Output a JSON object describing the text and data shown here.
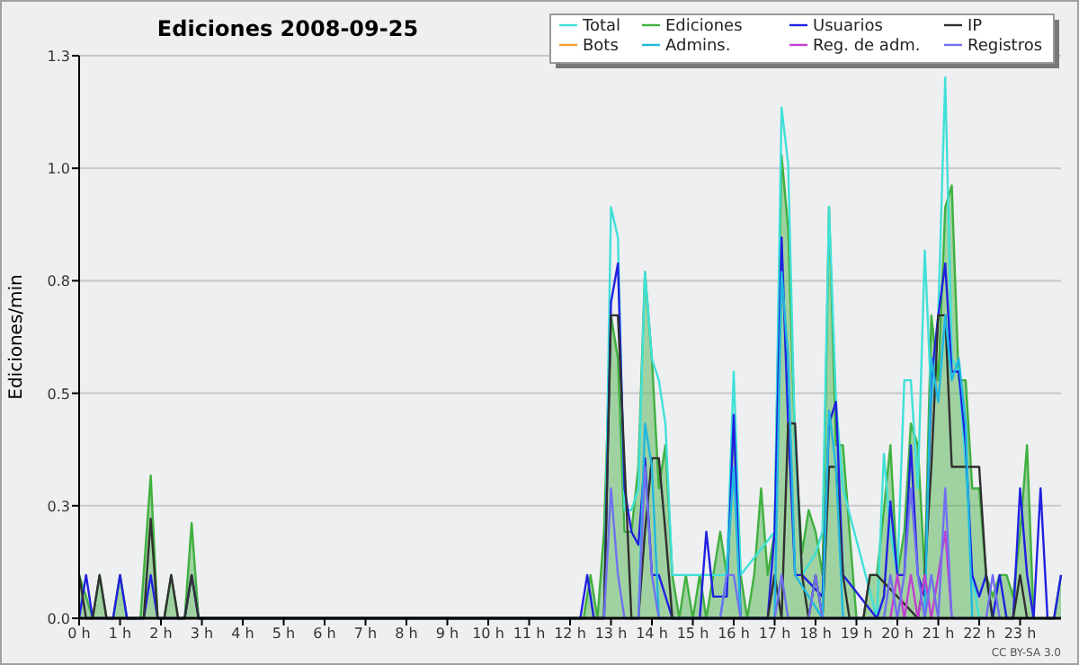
{
  "chart_data": {
    "type": "line",
    "title": "Ediciones  2008-09-25",
    "ylabel": "Ediciones/min",
    "annotations": [
      "CC BY-SA 3.0"
    ],
    "xlim": [
      0,
      24
    ],
    "xticks": [
      {
        "value": 0,
        "label": "0 h"
      },
      {
        "value": 1,
        "label": "1 h"
      },
      {
        "value": 2,
        "label": "2 h"
      },
      {
        "value": 3,
        "label": "3 h"
      },
      {
        "value": 4,
        "label": "4 h"
      },
      {
        "value": 5,
        "label": "5 h"
      },
      {
        "value": 6,
        "label": "6 h"
      },
      {
        "value": 7,
        "label": "7 h"
      },
      {
        "value": 8,
        "label": "8 h"
      },
      {
        "value": 9,
        "label": "9 h"
      },
      {
        "value": 10,
        "label": "10 h"
      },
      {
        "value": 11,
        "label": "11 h"
      },
      {
        "value": 12,
        "label": "12 h"
      },
      {
        "value": 13,
        "label": "13 h"
      },
      {
        "value": 14,
        "label": "14 h"
      },
      {
        "value": 15,
        "label": "15 h"
      },
      {
        "value": 16,
        "label": "16 h"
      },
      {
        "value": 17,
        "label": "17 h"
      },
      {
        "value": 18,
        "label": "18 h"
      },
      {
        "value": 19,
        "label": "19 h"
      },
      {
        "value": 20,
        "label": "20 h"
      },
      {
        "value": 21,
        "label": "21 h"
      },
      {
        "value": 22,
        "label": "22 h"
      },
      {
        "value": 23,
        "label": "23 h"
      }
    ],
    "ylim": [
      0,
      1.3
    ],
    "yticks": [
      {
        "value": 0,
        "label": "0.0"
      },
      {
        "value": 0.26,
        "label": "0.3"
      },
      {
        "value": 0.52,
        "label": "0.5"
      },
      {
        "value": 0.78,
        "label": "0.8"
      },
      {
        "value": 1.04,
        "label": "1.0"
      },
      {
        "value": 1.3,
        "label": "1.3"
      }
    ],
    "grid": "y",
    "legend": "top right",
    "marker": "none",
    "line_style": "solid",
    "series": [
      {
        "name": "Total",
        "color": "#40e0d8",
        "x": [
          12.83,
          13.0,
          13.17,
          13.33,
          13.5,
          13.67,
          13.83,
          14.0,
          14.17,
          14.33,
          14.5,
          15.83,
          16.0,
          16.17,
          17.0,
          17.17,
          17.33,
          17.5,
          17.67,
          18.0,
          18.17,
          18.33,
          18.5,
          18.67,
          19.5,
          19.67,
          19.83,
          20.0,
          20.17,
          20.33,
          20.5,
          20.67,
          20.83,
          21.0,
          21.17,
          21.33,
          21.5,
          21.67,
          21.83,
          22.0
        ],
        "values": [
          0,
          0.95,
          0.88,
          0.25,
          0.25,
          0.3,
          0.8,
          0.6,
          0.55,
          0.45,
          0.1,
          0.1,
          0.57,
          0.1,
          0.2,
          1.18,
          1.05,
          0.4,
          0.1,
          0.15,
          0.2,
          0.95,
          0.5,
          0.3,
          0,
          0.38,
          0.2,
          0.1,
          0.55,
          0.55,
          0.3,
          0.85,
          0.5,
          0.7,
          1.25,
          0.6,
          0.57,
          0.35,
          0.1,
          0
        ]
      },
      {
        "name": "Ediciones",
        "type": "area",
        "color": "#40b040",
        "x": [
          0,
          0.17,
          0.33,
          0.5,
          0.67,
          0.83,
          1.0,
          1.17,
          1.5,
          1.75,
          1.92,
          2.08,
          2.25,
          2.42,
          2.58,
          2.75,
          2.92,
          12.33,
          12.5,
          12.67,
          12.83,
          13.0,
          13.17,
          13.33,
          13.5,
          13.67,
          13.83,
          14.0,
          14.17,
          14.33,
          14.5,
          14.67,
          14.83,
          15.0,
          15.17,
          15.33,
          15.5,
          15.67,
          15.83,
          16.0,
          16.17,
          16.33,
          16.5,
          16.67,
          16.83,
          17.0,
          17.17,
          17.33,
          17.5,
          17.67,
          17.83,
          18.0,
          18.17,
          18.33,
          18.5,
          18.67,
          18.83,
          19.0,
          19.17,
          19.33,
          19.5,
          19.67,
          19.83,
          20.0,
          20.17,
          20.33,
          20.5,
          20.67,
          20.83,
          21.0,
          21.17,
          21.33,
          21.5,
          21.67,
          21.83,
          22.0,
          22.17,
          22.33,
          22.5,
          22.67,
          22.83,
          23.0,
          23.17,
          23.33,
          23.5,
          23.67,
          23.83,
          24.0
        ],
        "values": [
          0.1,
          0.05,
          0,
          0.1,
          0,
          0,
          0.1,
          0,
          0,
          0.33,
          0,
          0,
          0.1,
          0,
          0,
          0.22,
          0,
          0,
          0.1,
          0,
          0.2,
          0.7,
          0.6,
          0.2,
          0.2,
          0.35,
          0.8,
          0.6,
          0.3,
          0.4,
          0.1,
          0,
          0.1,
          0,
          0.1,
          0,
          0.1,
          0.2,
          0.1,
          0.47,
          0.1,
          0,
          0.1,
          0.3,
          0.1,
          0.2,
          1.07,
          0.9,
          0.4,
          0.15,
          0.25,
          0.2,
          0.1,
          0.95,
          0.4,
          0.4,
          0.2,
          0,
          0,
          0.1,
          0.1,
          0.25,
          0.4,
          0.1,
          0.2,
          0.45,
          0.4,
          0.1,
          0.7,
          0.55,
          0.95,
          1.0,
          0.55,
          0.55,
          0.3,
          0.3,
          0.1,
          0.05,
          0.1,
          0.1,
          0.05,
          0.2,
          0.4,
          0,
          0,
          0,
          0,
          0.1
        ]
      },
      {
        "name": "Usuarios",
        "color": "#2020e0",
        "x": [
          0,
          0.17,
          0.33,
          0.83,
          1.0,
          1.17,
          1.58,
          1.75,
          1.92,
          2.58,
          2.75,
          2.92,
          12.25,
          12.42,
          12.58,
          12.83,
          13.0,
          13.17,
          13.33,
          13.5,
          13.67,
          13.83,
          14.0,
          14.17,
          14.5,
          15.17,
          15.33,
          15.5,
          15.83,
          16.0,
          16.17,
          16.83,
          17.0,
          17.17,
          17.33,
          17.5,
          17.67,
          18.17,
          18.33,
          18.5,
          18.67,
          19.5,
          19.67,
          19.83,
          20.0,
          20.17,
          20.33,
          20.5,
          20.67,
          20.83,
          21.0,
          21.17,
          21.33,
          21.5,
          21.67,
          21.83,
          22.0,
          22.17,
          22.33,
          22.5,
          22.67,
          22.83,
          23.0,
          23.17,
          23.33,
          23.5,
          23.67,
          23.83,
          24.0
        ],
        "values": [
          0,
          0.1,
          0,
          0,
          0.1,
          0,
          0,
          0.1,
          0,
          0,
          0.1,
          0,
          0,
          0.1,
          0,
          0,
          0.73,
          0.82,
          0.3,
          0.2,
          0.17,
          0.37,
          0.1,
          0.1,
          0,
          0,
          0.2,
          0.05,
          0.05,
          0.47,
          0,
          0,
          0.2,
          0.88,
          0.45,
          0.1,
          0.1,
          0.05,
          0.45,
          0.5,
          0.1,
          0,
          0.05,
          0.27,
          0.1,
          0.1,
          0.4,
          0.1,
          0.05,
          0.55,
          0.7,
          0.82,
          0.57,
          0.57,
          0.4,
          0.1,
          0.05,
          0.1,
          0,
          0.1,
          0,
          0,
          0.3,
          0.1,
          0,
          0.3,
          0,
          0,
          0.1
        ]
      },
      {
        "name": "IP",
        "color": "#303030",
        "x": [
          0,
          0.17,
          0.33,
          0.5,
          0.67,
          1.58,
          1.75,
          1.92,
          2.08,
          2.25,
          2.42,
          2.58,
          2.75,
          2.92,
          12.83,
          13.0,
          13.17,
          13.5,
          13.67,
          13.83,
          14.0,
          14.17,
          14.33,
          14.5,
          16.83,
          17.0,
          17.17,
          17.33,
          17.5,
          17.67,
          17.83,
          18.0,
          18.17,
          18.33,
          18.5,
          18.67,
          18.83,
          19.17,
          19.33,
          19.5,
          20.5,
          20.67,
          20.83,
          21.0,
          21.17,
          21.33,
          21.83,
          22.0,
          22.17,
          22.33,
          22.83,
          23.0,
          23.17
        ],
        "values": [
          0.1,
          0,
          0,
          0.1,
          0,
          0,
          0.23,
          0,
          0,
          0.1,
          0,
          0,
          0.1,
          0,
          0,
          0.7,
          0.7,
          0,
          0,
          0.2,
          0.37,
          0.37,
          0.2,
          0,
          0,
          0.1,
          0,
          0.45,
          0.45,
          0.1,
          0,
          0.1,
          0,
          0.35,
          0.35,
          0.1,
          0,
          0,
          0.1,
          0.1,
          0,
          0.1,
          0.35,
          0.7,
          0.7,
          0.35,
          0.35,
          0.35,
          0.1,
          0,
          0,
          0.1,
          0
        ]
      },
      {
        "name": "Bots",
        "color": "#f0a030"
      },
      {
        "name": "Admins.",
        "color": "#20b8e0",
        "x": [
          13.67,
          13.83,
          14.0,
          14.17,
          15.67,
          15.83,
          16.0,
          16.17,
          17.0,
          17.17,
          17.33,
          17.5,
          18.17,
          18.33,
          18.5,
          18.67,
          20.67,
          20.83,
          21.0,
          21.17,
          21.33,
          21.5,
          21.67,
          21.83
        ],
        "values": [
          0,
          0.45,
          0.35,
          0,
          0,
          0.1,
          0.35,
          0,
          0,
          0.8,
          0.6,
          0.1,
          0,
          0.48,
          0.35,
          0,
          0,
          0.6,
          0.5,
          0.7,
          0.55,
          0.6,
          0.45,
          0
        ]
      },
      {
        "name": "Reg. de adm.",
        "color": "#c040d0",
        "x": [
          19.83,
          20.0,
          20.17,
          20.33,
          20.5,
          20.67,
          20.83,
          21.0,
          21.17,
          21.33
        ],
        "values": [
          0,
          0.1,
          0,
          0.1,
          0,
          0.1,
          0,
          0.1,
          0.2,
          0
        ]
      },
      {
        "name": "Registros",
        "color": "#7070f0",
        "x": [
          12.83,
          13.0,
          13.17,
          13.33,
          13.67,
          13.83,
          14.0,
          14.17,
          15.67,
          15.83,
          16.0,
          16.17,
          17.0,
          17.17,
          17.33,
          17.83,
          18.0,
          18.17,
          19.67,
          19.83,
          20.0,
          20.17,
          20.33,
          20.5,
          20.67,
          20.83,
          21.0,
          21.17,
          21.33,
          22.17,
          22.33,
          22.5
        ],
        "values": [
          0,
          0.3,
          0.1,
          0,
          0,
          0.35,
          0.1,
          0,
          0,
          0.1,
          0.1,
          0,
          0,
          0.1,
          0,
          0,
          0.1,
          0,
          0,
          0.1,
          0,
          0.1,
          0.3,
          0.1,
          0,
          0.1,
          0,
          0.3,
          0,
          0,
          0.1,
          0
        ]
      }
    ]
  }
}
